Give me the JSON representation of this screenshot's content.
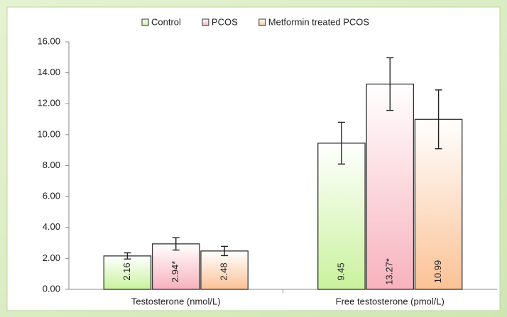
{
  "chart_data": {
    "type": "bar",
    "categories": [
      "Testosterone (nmol/L)",
      "Free testosterone (pmol/L)"
    ],
    "series": [
      {
        "name": "Control",
        "color": "#c9f29c",
        "values": [
          2.16,
          9.45
        ],
        "errors": [
          0.2,
          1.35
        ],
        "value_labels": [
          "2.16",
          "9.45"
        ]
      },
      {
        "name": "PCOS",
        "color": "#f7b2bd",
        "values": [
          2.94,
          13.27
        ],
        "errors": [
          0.4,
          1.7
        ],
        "value_labels": [
          "2.94*",
          "13.27*"
        ]
      },
      {
        "name": "Metformin treated PCOS",
        "color": "#fbc296",
        "values": [
          2.48,
          10.99
        ],
        "errors": [
          0.3,
          1.9
        ],
        "value_labels": [
          "2.48",
          "10.99"
        ]
      }
    ],
    "ylim": [
      0,
      16
    ],
    "yticks": [
      {
        "value": 0,
        "label": "0.00"
      },
      {
        "value": 2,
        "label": "2.00"
      },
      {
        "value": 4,
        "label": "4.00"
      },
      {
        "value": 6,
        "label": "6.00"
      },
      {
        "value": 8,
        "label": "8.00"
      },
      {
        "value": 10,
        "label": "10.00"
      },
      {
        "value": 12,
        "label": "12.00"
      },
      {
        "value": 14,
        "label": "14.00"
      },
      {
        "value": 16,
        "label": "16.00"
      }
    ],
    "grid": false,
    "legend": "top"
  }
}
